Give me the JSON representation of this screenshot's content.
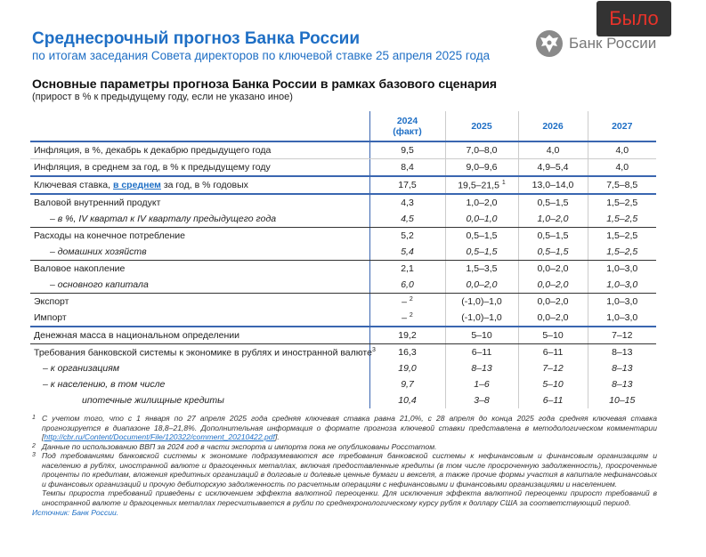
{
  "badge": "Было",
  "header": {
    "title": "Среднесрочный прогноз Банка России",
    "subtitle": "по итогам заседания Совета директоров по ключевой ставке 25 апреля 2025 года",
    "logo_text": "Банк России"
  },
  "section": {
    "title": "Основные параметры прогноза Банка России в рамках базового сценария",
    "subtitle": "(прирост в % к предыдущему году, если не указано иное)"
  },
  "table": {
    "columns": [
      {
        "year": "2024",
        "note": "(факт)"
      },
      {
        "year": "2025"
      },
      {
        "year": "2026"
      },
      {
        "year": "2027"
      }
    ],
    "rows": [
      {
        "label": "Инфляция, в %, декабрь к декабрю предыдущего года",
        "values": [
          "9,5",
          "7,0–8,0",
          "4,0",
          "4,0"
        ]
      },
      {
        "label": "Инфляция, в среднем за год, в % к предыдущему году",
        "values": [
          "8,4",
          "9,0–9,6",
          "4,9–5,4",
          "4,0"
        ]
      },
      {
        "label_pre": "Ключевая ставка, ",
        "label_link": "в среднем",
        "label_post": " за год, в % годовых",
        "values": [
          "17,5",
          "19,5–21,5",
          "13,0–14,0",
          "7,5–8,5"
        ],
        "sup": "1"
      },
      {
        "label": "Валовой внутренний продукт",
        "values": [
          "4,3",
          "1,0–2,0",
          "0,5–1,5",
          "1,5–2,5"
        ]
      },
      {
        "label": "– в %, IV квартал к IV кварталу предыдущего года",
        "values": [
          "4,5",
          "0,0–1,0",
          "1,0–2,0",
          "1,5–2,5"
        ]
      },
      {
        "label": "Расходы на конечное потребление",
        "values": [
          "5,2",
          "0,5–1,5",
          "0,5–1,5",
          "1,5–2,5"
        ]
      },
      {
        "label": "– домашних хозяйств",
        "values": [
          "5,4",
          "0,5–1,5",
          "0,5–1,5",
          "1,5–2,5"
        ]
      },
      {
        "label": "Валовое накопление",
        "values": [
          "2,1",
          "1,5–3,5",
          "0,0–2,0",
          "1,0–3,0"
        ]
      },
      {
        "label": "– основного капитала",
        "values": [
          "6,0",
          "0,0–2,0",
          "0,0–2,0",
          "1,0–3,0"
        ]
      },
      {
        "label": "Экспорт",
        "values": [
          "–",
          "(-1,0)–1,0",
          "0,0–2,0",
          "1,0–3,0"
        ],
        "sup": "2"
      },
      {
        "label": "Импорт",
        "values": [
          "–",
          "(-1,0)–1,0",
          "0,0–2,0",
          "1,0–3,0"
        ],
        "sup": "2"
      },
      {
        "label": "Денежная масса в национальном определении",
        "values": [
          "19,2",
          "5–10",
          "5–10",
          "7–12"
        ]
      },
      {
        "label": "Требования банковской системы к экономике в рублях и иностранной валюте",
        "label_sup": "3",
        "values": [
          "16,3",
          "6–11",
          "6–11",
          "8–13"
        ]
      },
      {
        "label": "–  к организациям",
        "values": [
          "19,0",
          "8–13",
          "7–12",
          "8–13"
        ]
      },
      {
        "label": "–  к населению, в том числе",
        "values": [
          "9,7",
          "1–6",
          "5–10",
          "8–13"
        ]
      },
      {
        "label": "ипотечные жилищные кредиты",
        "values": [
          "10,4",
          "3–8",
          "6–11",
          "10–15"
        ]
      }
    ]
  },
  "footnotes": [
    {
      "n": "1",
      "text": "С учетом того, что с 1 января по 27 апреля 2025 года средняя ключевая ставка равна 21,0%, с 28 апреля до конца 2025 года средняя ключевая ставка прогнозируется в диапазоне 18,8–21,8%. Дополнительная информация о формате прогноза ключевой ставки представлена в методологическом комментарии [",
      "link": "http://cbr.ru/Content/Document/File/120322/comment_20210422.pdf",
      "after": "]."
    },
    {
      "n": "2",
      "text": "Данные по использованию ВВП за 2024 год в части экспорта и импорта пока не опубликованы Росстатом."
    },
    {
      "n": "3",
      "text": "Под требованиями банковской системы к экономике подразумеваются все требования банковской системы к нефинансовым и финансовым организациям и населению в рублях, иностранной валюте и драгоценных металлах, включая предоставленные кредиты (в том числе просроченную задолженность), просроченные проценты по кредитам, вложения кредитных организаций в долговые и долевые ценные бумаги и векселя, а также прочие формы участия в капитале нефинансовых и финансовых организаций и прочую дебиторскую задолженность по расчетным операциям с нефинансовыми и финансовыми организациями и населением.",
      "text2": "Темпы прироста требований приведены с исключением эффекта валютной переоценки. Для исключения эффекта валютной переоценки прирост требований в иностранной валюте и драгоценных металлах пересчитывается в рубли по среднехронологическому курсу рубля к доллару США за соответствующий период."
    }
  ],
  "source": "Источник: Банк России."
}
